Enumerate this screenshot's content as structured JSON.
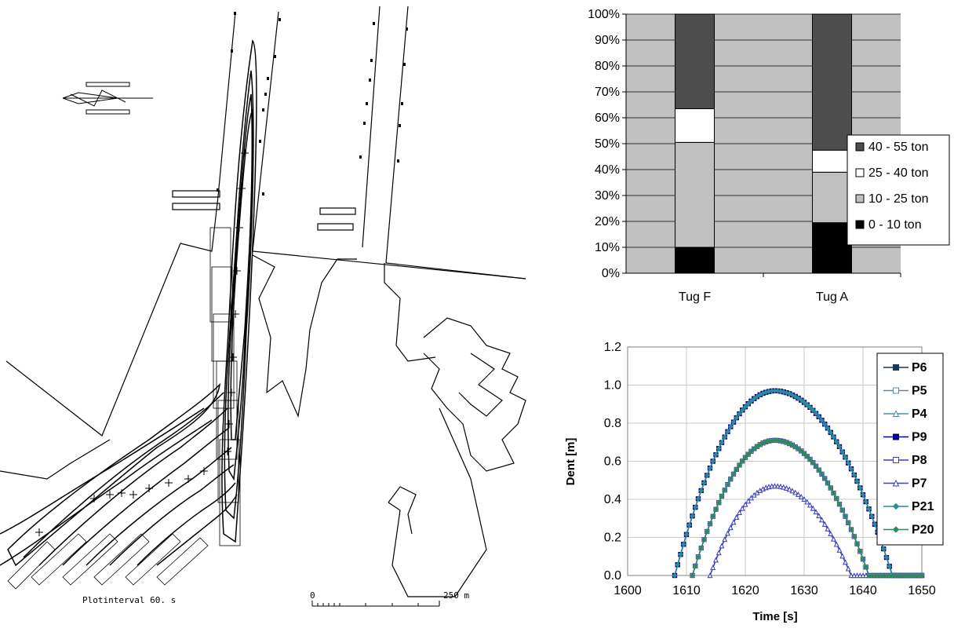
{
  "track_plot": {
    "plot_interval_label": "Plotinterval 60. s",
    "scale_start_label": "0",
    "scale_end_label": "250 m"
  },
  "chart_data": [
    {
      "type": "bar",
      "stacked": "percent",
      "categories": [
        "Tug F",
        "Tug A"
      ],
      "series": [
        {
          "name": "0 - 10 ton",
          "values": [
            10,
            19.5
          ],
          "color": "#000000"
        },
        {
          "name": "10 - 25 ton",
          "values": [
            40.5,
            19.5
          ],
          "color": "#c0c0c0"
        },
        {
          "name": "25 - 40 ton",
          "values": [
            13,
            8.5
          ],
          "color": "#ffffff"
        },
        {
          "name": "40 - 55 ton",
          "values": [
            36.5,
            52.5
          ],
          "color": "#4d4d4d"
        }
      ],
      "ylim": [
        0,
        100
      ],
      "yticks": [
        "0%",
        "10%",
        "20%",
        "30%",
        "40%",
        "50%",
        "60%",
        "70%",
        "80%",
        "90%",
        "100%"
      ],
      "plot_background": "#c0c0c0",
      "grid": true,
      "legend_position": "right"
    },
    {
      "type": "line",
      "xlabel": "Time [s]",
      "ylabel": "Dent [m]",
      "xlim": [
        1600,
        1650
      ],
      "ylim": [
        0,
        1.2
      ],
      "xticks": [
        "1600",
        "1610",
        "1620",
        "1630",
        "1640",
        "1650"
      ],
      "yticks": [
        "0.0",
        "0.2",
        "0.4",
        "0.6",
        "0.8",
        "1.0",
        "1.2"
      ],
      "grid": true,
      "legend_position": "right",
      "series": [
        {
          "name": "P6",
          "marker": "filled-square",
          "color": "#1a3560",
          "curve": {
            "start": 1608,
            "end": 1645,
            "peak_x": 1625,
            "peak": 0.97
          }
        },
        {
          "name": "P5",
          "marker": "open-square",
          "color": "#5c8aa3",
          "curve": {
            "start": 1611,
            "end": 1641,
            "peak_x": 1625,
            "peak": 0.71
          }
        },
        {
          "name": "P4",
          "marker": "open-triangle",
          "color": "#5c8aa3",
          "curve": {
            "start": 1614,
            "end": 1638,
            "peak_x": 1625,
            "peak": 0.47
          }
        },
        {
          "name": "P9",
          "marker": "filled-square",
          "color": "#00008b",
          "curve": {
            "start": 1608,
            "end": 1645,
            "peak_x": 1625,
            "peak": 0.97
          }
        },
        {
          "name": "P8",
          "marker": "open-square",
          "color": "#3f3fbf",
          "curve": {
            "start": 1611,
            "end": 1641,
            "peak_x": 1625,
            "peak": 0.71
          }
        },
        {
          "name": "P7",
          "marker": "open-triangle",
          "color": "#3f3fbf",
          "curve": {
            "start": 1614,
            "end": 1638,
            "peak_x": 1625,
            "peak": 0.47
          }
        },
        {
          "name": "P21",
          "marker": "filled-diamond",
          "color": "#2e8b9a",
          "curve": {
            "start": 1608,
            "end": 1645,
            "peak_x": 1625,
            "peak": 0.97
          }
        },
        {
          "name": "P20",
          "marker": "filled-diamond",
          "color": "#2e8b57",
          "curve": {
            "start": 1611,
            "end": 1641,
            "peak_x": 1625,
            "peak": 0.71
          }
        }
      ]
    }
  ]
}
